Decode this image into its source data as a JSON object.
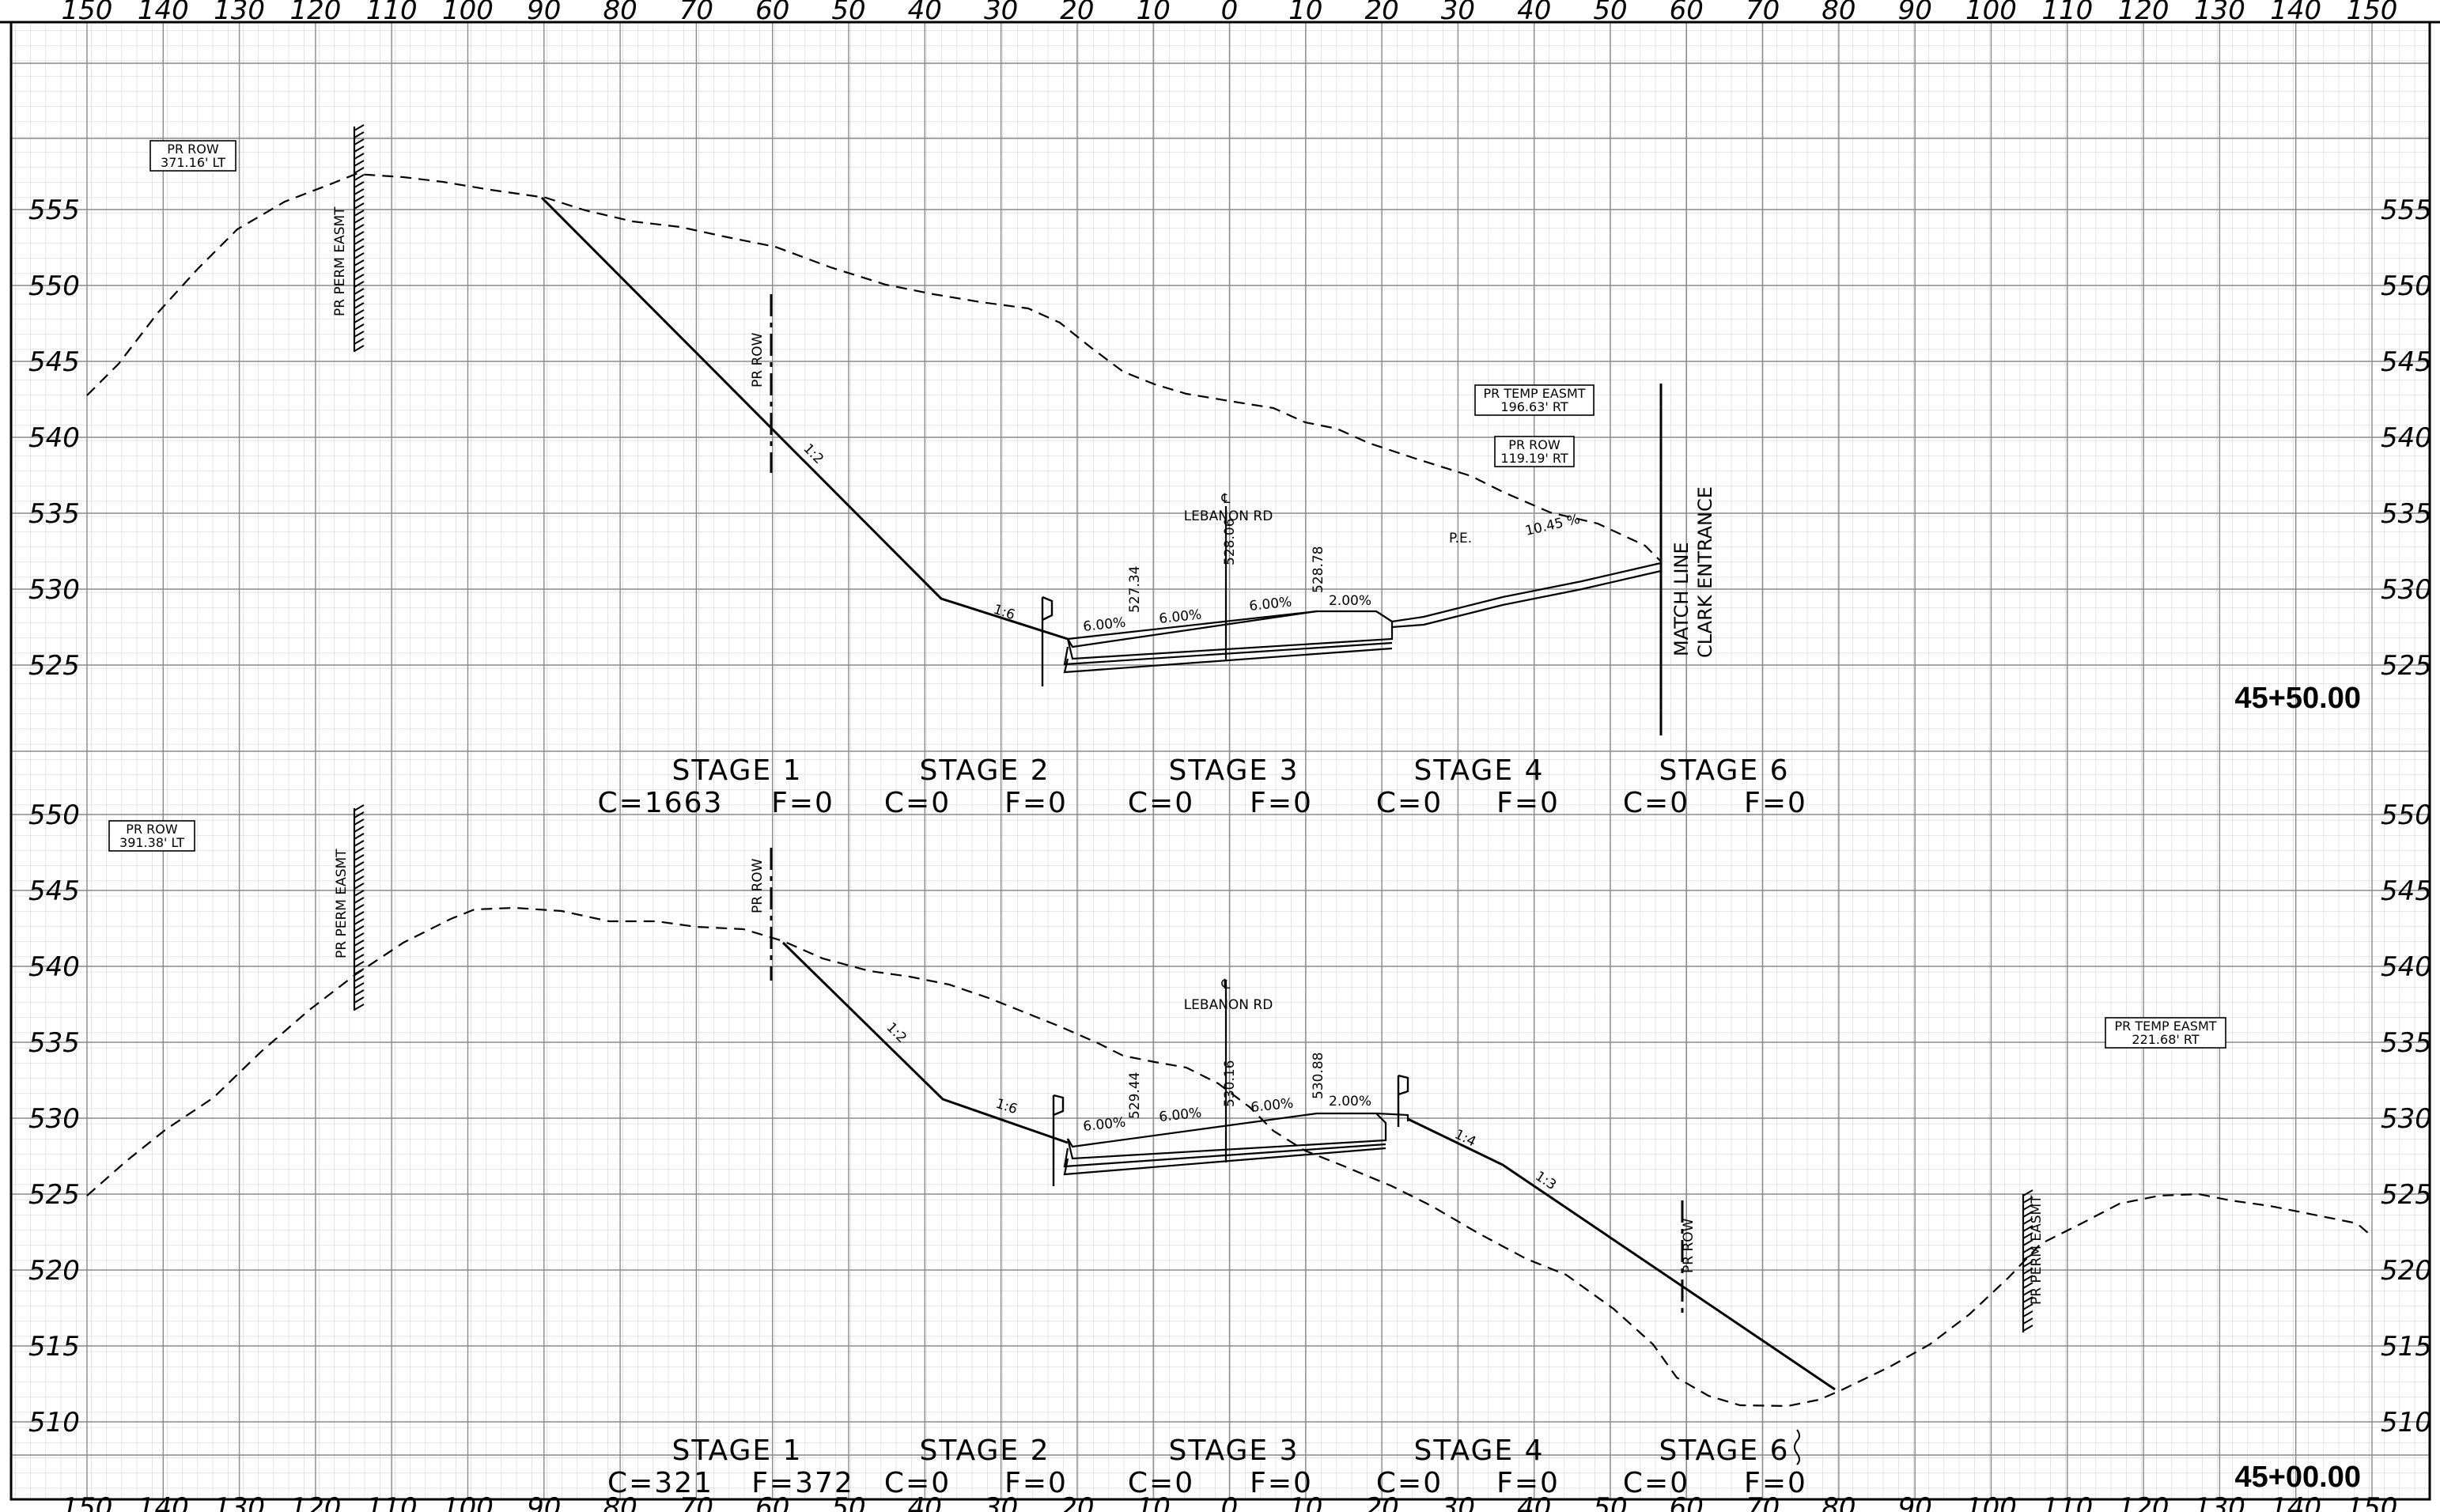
{
  "offset_ticks": [
    "150",
    "140",
    "130",
    "120",
    "110",
    "100",
    "90",
    "80",
    "70",
    "60",
    "50",
    "40",
    "30",
    "20",
    "10",
    "0",
    "10",
    "20",
    "30",
    "40",
    "50",
    "60",
    "70",
    "80",
    "90",
    "100",
    "110",
    "120",
    "130",
    "140",
    "150"
  ],
  "sections": [
    {
      "station": "45+50.00",
      "elevations": [
        "555",
        "550",
        "545",
        "540",
        "535",
        "530",
        "525"
      ],
      "top_elev": 558,
      "labels": {
        "pr_row_left": [
          "PR ROW",
          "371.16' LT"
        ],
        "perm_easmt": "PR PERM EASMT",
        "pr_row_mid": "PR ROW",
        "temp_easmt_right": [
          "PR TEMP EASMT",
          "196.63' RT"
        ],
        "pr_row_right": [
          "PR ROW",
          "119.19' RT"
        ],
        "cl_symbol": "℄",
        "road": "LEBANON RD",
        "pe": "P.E.",
        "match_line": [
          "MATCH LINE",
          "CLARK ENTRANCE"
        ],
        "slope_12": "1:2",
        "slope_16": "1:6",
        "pct_left1": "6.00%",
        "pct_left2": "6.00%",
        "pct_right1": "6.00%",
        "pct_right2": "2.00%",
        "pct_drive": "10.45 %",
        "elev_a": "527.34",
        "elev_cl": "528.06",
        "elev_b": "528.78"
      },
      "stages": [
        {
          "name": "STAGE 1",
          "c": "C=1663",
          "f": "F=0"
        },
        {
          "name": "STAGE 2",
          "c": "C=0",
          "f": "F=0"
        },
        {
          "name": "STAGE 3",
          "c": "C=0",
          "f": "F=0"
        },
        {
          "name": "STAGE 4",
          "c": "C=0",
          "f": "F=0"
        },
        {
          "name": "STAGE 6",
          "c": "C=0",
          "f": "F=0"
        }
      ]
    },
    {
      "station": "45+00.00",
      "elevations": [
        "550",
        "545",
        "540",
        "535",
        "530",
        "525",
        "520",
        "515",
        "510"
      ],
      "top_elev": 553,
      "labels": {
        "pr_row_left": [
          "PR ROW",
          "391.38' LT"
        ],
        "perm_easmt": "PR PERM EASMT",
        "pr_row_mid": "PR ROW",
        "temp_easmt_right": [
          "PR TEMP EASMT",
          "221.68' RT"
        ],
        "pr_row_right": "PR ROW",
        "perm_easmt_right": "PR PERM EASMT",
        "cl_symbol": "℄",
        "road": "LEBANON RD",
        "slope_12": "1:2",
        "slope_16": "1:6",
        "slope_14": "1:4",
        "slope_13": "1:3",
        "pct_left1": "6.00%",
        "pct_left2": "6.00%",
        "pct_right1": "6.00%",
        "pct_right2": "2.00%",
        "elev_a": "529.44",
        "elev_cl": "530.16",
        "elev_b": "530.88"
      },
      "stages": [
        {
          "name": "STAGE 1",
          "c": "C=321",
          "f": "F=372"
        },
        {
          "name": "STAGE 2",
          "c": "C=0",
          "f": "F=0"
        },
        {
          "name": "STAGE 3",
          "c": "C=0",
          "f": "F=0"
        },
        {
          "name": "STAGE 4",
          "c": "C=0",
          "f": "F=0"
        },
        {
          "name": "STAGE 6",
          "c": "C=0",
          "f": "F=0"
        }
      ]
    }
  ]
}
